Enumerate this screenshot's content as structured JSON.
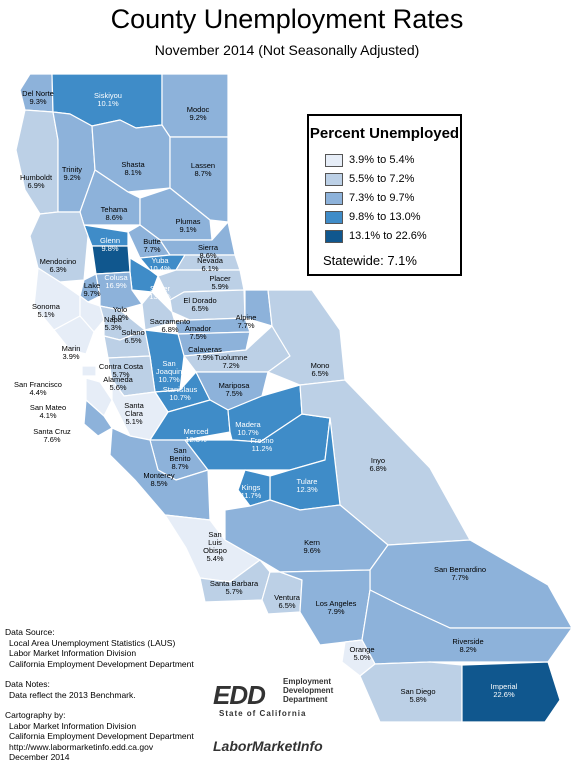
{
  "title": "County Unemployment Rates",
  "subtitle": "November 2014 (Not Seasonally Adjusted)",
  "legend": {
    "title": "Percent Unemployed",
    "classes": [
      {
        "label": "3.9% to 5.4%",
        "color": "#e6edf7"
      },
      {
        "label": "5.5% to 7.2%",
        "color": "#bcd0e6"
      },
      {
        "label": "7.3% to 9.7%",
        "color": "#8db2da"
      },
      {
        "label": "9.8% to 13.0%",
        "color": "#3f8cc8"
      },
      {
        "label": "13.1% to 22.6%",
        "color": "#10578e"
      }
    ],
    "statewide": "Statewide: 7.1%"
  },
  "counties": [
    {
      "name": "Del Norte",
      "rate": "9.3%",
      "cls": 2
    },
    {
      "name": "Siskiyou",
      "rate": "10.1%",
      "cls": 3
    },
    {
      "name": "Modoc",
      "rate": "9.2%",
      "cls": 2
    },
    {
      "name": "Humboldt",
      "rate": "6.9%",
      "cls": 1
    },
    {
      "name": "Trinity",
      "rate": "9.2%",
      "cls": 2
    },
    {
      "name": "Shasta",
      "rate": "8.1%",
      "cls": 2
    },
    {
      "name": "Lassen",
      "rate": "8.7%",
      "cls": 2
    },
    {
      "name": "Tehama",
      "rate": "8.6%",
      "cls": 2
    },
    {
      "name": "Plumas",
      "rate": "9.1%",
      "cls": 2
    },
    {
      "name": "Butte",
      "rate": "7.7%",
      "cls": 2
    },
    {
      "name": "Glenn",
      "rate": "9.8%",
      "cls": 3
    },
    {
      "name": "Mendocino",
      "rate": "6.3%",
      "cls": 1
    },
    {
      "name": "Sierra",
      "rate": "8.6%",
      "cls": 2
    },
    {
      "name": "Yuba",
      "rate": "10.4%",
      "cls": 3
    },
    {
      "name": "Nevada",
      "rate": "6.1%",
      "cls": 1
    },
    {
      "name": "Colusa",
      "rate": "16.9%",
      "cls": 4
    },
    {
      "name": "Sutter",
      "rate": "13.0%",
      "cls": 3
    },
    {
      "name": "Lake",
      "rate": "9.7%",
      "cls": 2
    },
    {
      "name": "Placer",
      "rate": "5.9%",
      "cls": 1
    },
    {
      "name": "El Dorado",
      "rate": "6.5%",
      "cls": 1
    },
    {
      "name": "Sonoma",
      "rate": "5.1%",
      "cls": 0
    },
    {
      "name": "Yolo",
      "rate": "8.0%",
      "cls": 2
    },
    {
      "name": "Sacramento",
      "rate": "6.8%",
      "cls": 1
    },
    {
      "name": "Alpine",
      "rate": "7.7%",
      "cls": 2
    },
    {
      "name": "Amador",
      "rate": "7.5%",
      "cls": 2
    },
    {
      "name": "Napa",
      "rate": "5.3%",
      "cls": 0
    },
    {
      "name": "Solano",
      "rate": "6.5%",
      "cls": 1
    },
    {
      "name": "Calaveras",
      "rate": "7.9%",
      "cls": 2
    },
    {
      "name": "Marin",
      "rate": "3.9%",
      "cls": 0
    },
    {
      "name": "Contra Costa",
      "rate": "5.7%",
      "cls": 1
    },
    {
      "name": "San Joaquin",
      "rate": "10.7%",
      "cls": 3
    },
    {
      "name": "Tuolumne",
      "rate": "7.2%",
      "cls": 1
    },
    {
      "name": "Mono",
      "rate": "6.5%",
      "cls": 1
    },
    {
      "name": "San Francisco",
      "rate": "4.4%",
      "cls": 0
    },
    {
      "name": "Alameda",
      "rate": "5.6%",
      "cls": 1
    },
    {
      "name": "Stanislaus",
      "rate": "10.7%",
      "cls": 3
    },
    {
      "name": "Mariposa",
      "rate": "7.5%",
      "cls": 2
    },
    {
      "name": "San Mateo",
      "rate": "4.1%",
      "cls": 0
    },
    {
      "name": "Santa Clara",
      "rate": "5.1%",
      "cls": 0
    },
    {
      "name": "Merced",
      "rate": "12.3%",
      "cls": 3
    },
    {
      "name": "Madera",
      "rate": "10.7%",
      "cls": 3
    },
    {
      "name": "Santa Cruz",
      "rate": "7.6%",
      "cls": 2
    },
    {
      "name": "San Benito",
      "rate": "8.7%",
      "cls": 2
    },
    {
      "name": "Fresno",
      "rate": "11.2%",
      "cls": 3
    },
    {
      "name": "Inyo",
      "rate": "6.8%",
      "cls": 1
    },
    {
      "name": "Tulare",
      "rate": "12.3%",
      "cls": 3
    },
    {
      "name": "Monterey",
      "rate": "8.5%",
      "cls": 2
    },
    {
      "name": "Kings",
      "rate": "11.7%",
      "cls": 3
    },
    {
      "name": "San Luis Obispo",
      "rate": "5.4%",
      "cls": 0
    },
    {
      "name": "Kern",
      "rate": "9.6%",
      "cls": 2
    },
    {
      "name": "San Bernardino",
      "rate": "7.7%",
      "cls": 2
    },
    {
      "name": "Santa Barbara",
      "rate": "5.7%",
      "cls": 1
    },
    {
      "name": "Ventura",
      "rate": "6.5%",
      "cls": 1
    },
    {
      "name": "Los Angeles",
      "rate": "7.9%",
      "cls": 2
    },
    {
      "name": "Riverside",
      "rate": "8.2%",
      "cls": 2
    },
    {
      "name": "Orange",
      "rate": "5.0%",
      "cls": 0
    },
    {
      "name": "San Diego",
      "rate": "5.8%",
      "cls": 1
    },
    {
      "name": "Imperial",
      "rate": "22.6%",
      "cls": 4
    }
  ],
  "notes": {
    "source_head": "Data Source:",
    "source_lines": [
      "Local Area Unemployment Statistics (LAUS)",
      "Labor Market Information Division",
      "California Employment Development Department"
    ],
    "data_head": "Data Notes:",
    "data_lines": [
      "Data reflect the 2013 Benchmark."
    ],
    "carto_head": "Cartography by:",
    "carto_lines": [
      "Labor Market Information Division",
      "California Employment Development Department",
      "http://www.labormarketinfo.edd.ca.gov",
      "December 2014"
    ]
  },
  "logo": {
    "mark": "EDD",
    "words": [
      "Employment",
      "Development",
      "Department"
    ],
    "state": "State of California",
    "lmi": "LaborMarketInfo"
  }
}
